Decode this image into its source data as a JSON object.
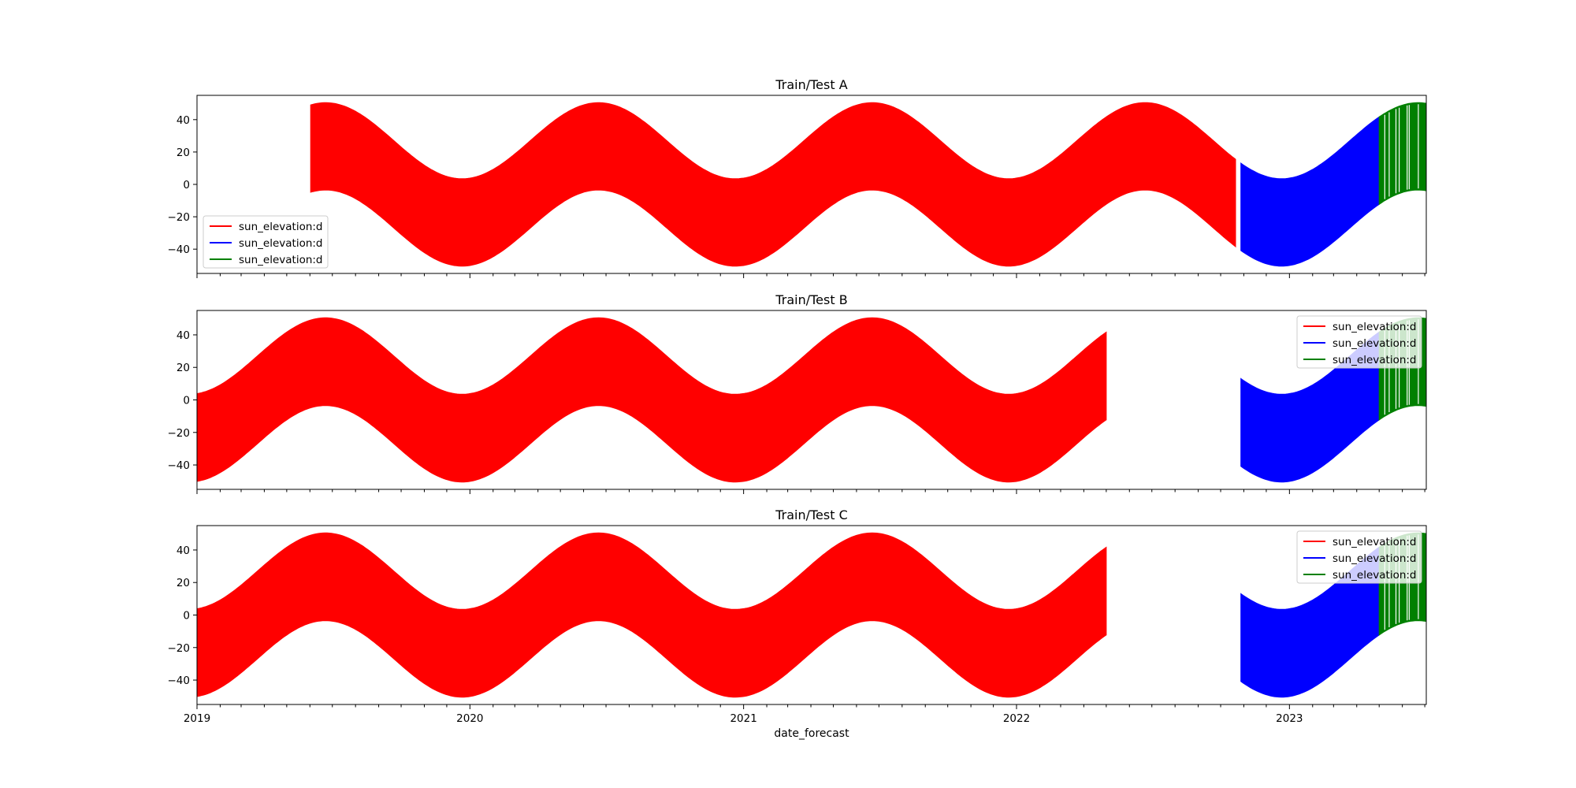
{
  "chart_data": [
    {
      "type": "area",
      "title": "Train/Test  A",
      "xlabel": "",
      "ylabel": "",
      "x_range": [
        "2019-01-01",
        "2023-07-03"
      ],
      "ylim": [
        -55,
        55
      ],
      "yticks": [
        40,
        20,
        0,
        -20,
        -40
      ],
      "ytick_labels": [
        "40",
        "20",
        "0",
        "−20",
        "−40"
      ],
      "legend": {
        "placement": "lower-left",
        "entries": [
          {
            "label": "sun_elevation:d",
            "color": "#ff0000"
          },
          {
            "label": "sun_elevation:d",
            "color": "#0000ff"
          },
          {
            "label": "sun_elevation:d",
            "color": "#008000"
          }
        ]
      },
      "series": [
        {
          "color": "#ff0000",
          "start": "2019-06-02",
          "end": "2022-10-21",
          "daily_max_range": [
            3.5,
            50.5
          ],
          "daily_min_range": [
            -50.5,
            -3.5
          ]
        },
        {
          "color": "#0000ff",
          "start": "2022-10-28",
          "end": "2023-05-01",
          "daily_max_range": [
            3.5,
            50.5
          ],
          "daily_min_range": [
            -50.5,
            -3.5
          ]
        },
        {
          "color": "#008000",
          "start": "2023-05-01",
          "end": "2023-07-03",
          "daily_max_range": [
            3.5,
            50.5
          ],
          "daily_min_range": [
            -50.5,
            -3.5
          ]
        }
      ]
    },
    {
      "type": "area",
      "title": "Train/Test  B",
      "xlabel": "",
      "ylabel": "",
      "x_range": [
        "2019-01-01",
        "2023-07-03"
      ],
      "ylim": [
        -55,
        55
      ],
      "yticks": [
        40,
        20,
        0,
        -20,
        -40
      ],
      "ytick_labels": [
        "40",
        "20",
        "0",
        "−20",
        "−40"
      ],
      "legend": {
        "placement": "upper-right",
        "entries": [
          {
            "label": "sun_elevation:d",
            "color": "#ff0000"
          },
          {
            "label": "sun_elevation:d",
            "color": "#0000ff"
          },
          {
            "label": "sun_elevation:d",
            "color": "#008000"
          }
        ]
      },
      "series": [
        {
          "color": "#ff0000",
          "start": "2019-01-01",
          "end": "2022-05-01",
          "daily_max_range": [
            3.5,
            50.5
          ],
          "daily_min_range": [
            -50.5,
            -3.5
          ]
        },
        {
          "color": "#0000ff",
          "start": "2022-10-28",
          "end": "2023-05-01",
          "daily_max_range": [
            3.5,
            50.5
          ],
          "daily_min_range": [
            -50.5,
            -3.5
          ]
        },
        {
          "color": "#008000",
          "start": "2023-05-01",
          "end": "2023-07-03",
          "daily_max_range": [
            3.5,
            50.5
          ],
          "daily_min_range": [
            -50.5,
            -3.5
          ]
        }
      ]
    },
    {
      "type": "area",
      "title": "Train/Test  C",
      "xlabel": "date_forecast",
      "ylabel": "",
      "x_range": [
        "2019-01-01",
        "2023-07-03"
      ],
      "ylim": [
        -55,
        55
      ],
      "yticks": [
        40,
        20,
        0,
        -20,
        -40
      ],
      "ytick_labels": [
        "40",
        "20",
        "0",
        "−20",
        "−40"
      ],
      "xticks": [
        "2019-01-01",
        "2020-01-01",
        "2021-01-01",
        "2022-01-01",
        "2023-01-01"
      ],
      "xtick_labels": [
        "2019",
        "2020",
        "2021",
        "2022",
        "2023"
      ],
      "legend": {
        "placement": "upper-right",
        "entries": [
          {
            "label": "sun_elevation:d",
            "color": "#ff0000"
          },
          {
            "label": "sun_elevation:d",
            "color": "#0000ff"
          },
          {
            "label": "sun_elevation:d",
            "color": "#008000"
          }
        ]
      },
      "series": [
        {
          "color": "#ff0000",
          "start": "2019-01-01",
          "end": "2022-05-01",
          "daily_max_range": [
            3.5,
            50.5
          ],
          "daily_min_range": [
            -50.5,
            -3.5
          ]
        },
        {
          "color": "#0000ff",
          "start": "2022-10-28",
          "end": "2023-05-01",
          "daily_max_range": [
            3.5,
            50.5
          ],
          "daily_min_range": [
            -50.5,
            -3.5
          ]
        },
        {
          "color": "#008000",
          "start": "2023-05-01",
          "end": "2023-07-03",
          "daily_max_range": [
            3.5,
            50.5
          ],
          "daily_min_range": [
            -50.5,
            -3.5
          ]
        }
      ]
    }
  ]
}
